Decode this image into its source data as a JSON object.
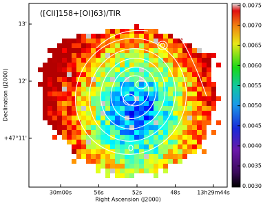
{
  "chart_data": {
    "type": "map",
    "title": "([CII]158+[OI]63)/TIR",
    "x_label": "Right Ascension (J2000)",
    "y_label": "Declination (J2000)",
    "xticks": [
      "30m00s",
      "56s",
      "52s",
      "48s",
      "13h29m44s"
    ],
    "yticks": [
      "13'",
      "12'",
      "+47°11'"
    ],
    "colorbar": {
      "zlim": [
        0.00297,
        0.00755
      ],
      "ticks": [
        {
          "value": 0.003,
          "label": "0.0030"
        },
        0.0035,
        {
          "value": 0.004,
          "label": "0.0040"
        },
        0.0045,
        {
          "value": 0.005,
          "label": "0.0050"
        },
        0.0055,
        {
          "value": 0.006,
          "label": "0.0060"
        },
        0.0065,
        {
          "value": 0.007,
          "label": "0.0070"
        },
        0.0075
      ]
    }
  }
}
